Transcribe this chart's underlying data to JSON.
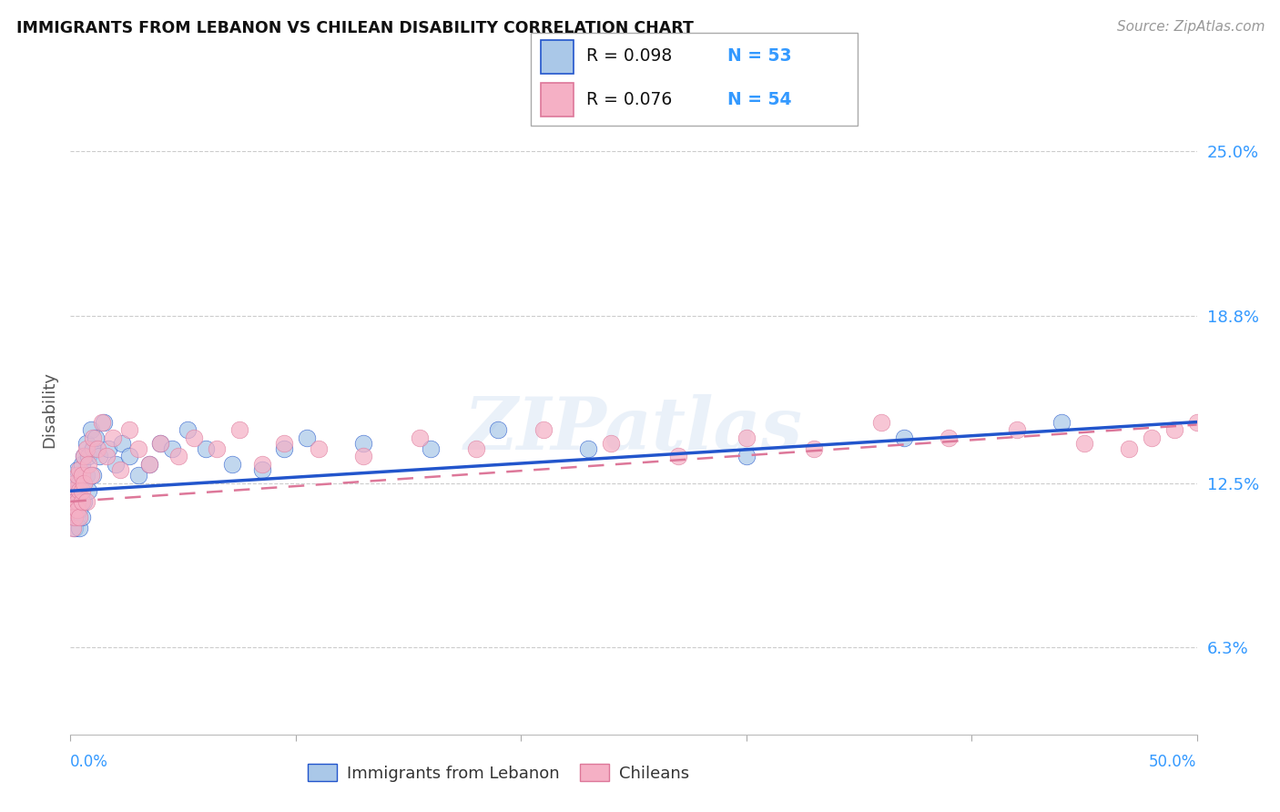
{
  "title": "IMMIGRANTS FROM LEBANON VS CHILEAN DISABILITY CORRELATION CHART",
  "source": "Source: ZipAtlas.com",
  "ylabel": "Disability",
  "ytick_labels": [
    "6.3%",
    "12.5%",
    "18.8%",
    "25.0%"
  ],
  "ytick_values": [
    0.063,
    0.125,
    0.188,
    0.25
  ],
  "xlim": [
    0.0,
    0.5
  ],
  "ylim": [
    0.03,
    0.275
  ],
  "R_lebanon": 0.098,
  "N_lebanon": 53,
  "R_chileans": 0.076,
  "N_chileans": 54,
  "color_lebanon": "#aac8e8",
  "color_chileans": "#f5b0c5",
  "line_color_lebanon": "#2255cc",
  "line_color_chileans": "#dd7799",
  "watermark": "ZIPatlas",
  "legend_label_lebanon": "Immigrants from Lebanon",
  "legend_label_chileans": "Chileans",
  "x_lebanon": [
    0.001,
    0.001,
    0.001,
    0.002,
    0.002,
    0.002,
    0.002,
    0.003,
    0.003,
    0.003,
    0.003,
    0.004,
    0.004,
    0.004,
    0.004,
    0.005,
    0.005,
    0.005,
    0.005,
    0.006,
    0.006,
    0.006,
    0.007,
    0.007,
    0.008,
    0.008,
    0.009,
    0.01,
    0.01,
    0.011,
    0.013,
    0.015,
    0.017,
    0.02,
    0.023,
    0.026,
    0.03,
    0.035,
    0.04,
    0.045,
    0.052,
    0.06,
    0.072,
    0.085,
    0.095,
    0.105,
    0.13,
    0.16,
    0.19,
    0.23,
    0.3,
    0.37,
    0.44
  ],
  "y_lebanon": [
    0.12,
    0.128,
    0.112,
    0.118,
    0.125,
    0.115,
    0.108,
    0.122,
    0.13,
    0.118,
    0.112,
    0.125,
    0.115,
    0.12,
    0.108,
    0.132,
    0.118,
    0.125,
    0.112,
    0.135,
    0.125,
    0.118,
    0.14,
    0.128,
    0.135,
    0.122,
    0.145,
    0.138,
    0.128,
    0.142,
    0.135,
    0.148,
    0.138,
    0.132,
    0.14,
    0.135,
    0.128,
    0.132,
    0.14,
    0.138,
    0.145,
    0.138,
    0.132,
    0.13,
    0.138,
    0.142,
    0.14,
    0.138,
    0.145,
    0.138,
    0.135,
    0.142,
    0.148
  ],
  "x_chileans": [
    0.001,
    0.001,
    0.001,
    0.002,
    0.002,
    0.002,
    0.003,
    0.003,
    0.003,
    0.004,
    0.004,
    0.004,
    0.005,
    0.005,
    0.005,
    0.006,
    0.006,
    0.007,
    0.007,
    0.008,
    0.009,
    0.01,
    0.012,
    0.014,
    0.016,
    0.019,
    0.022,
    0.026,
    0.03,
    0.035,
    0.04,
    0.048,
    0.055,
    0.065,
    0.075,
    0.085,
    0.095,
    0.11,
    0.13,
    0.155,
    0.18,
    0.21,
    0.24,
    0.27,
    0.3,
    0.33,
    0.36,
    0.39,
    0.42,
    0.45,
    0.47,
    0.48,
    0.49,
    0.5
  ],
  "y_chileans": [
    0.115,
    0.122,
    0.108,
    0.125,
    0.118,
    0.112,
    0.128,
    0.118,
    0.115,
    0.122,
    0.13,
    0.112,
    0.118,
    0.128,
    0.122,
    0.135,
    0.125,
    0.138,
    0.118,
    0.132,
    0.128,
    0.142,
    0.138,
    0.148,
    0.135,
    0.142,
    0.13,
    0.145,
    0.138,
    0.132,
    0.14,
    0.135,
    0.142,
    0.138,
    0.145,
    0.132,
    0.14,
    0.138,
    0.135,
    0.142,
    0.138,
    0.145,
    0.14,
    0.135,
    0.142,
    0.138,
    0.148,
    0.142,
    0.145,
    0.14,
    0.138,
    0.142,
    0.145,
    0.148
  ]
}
